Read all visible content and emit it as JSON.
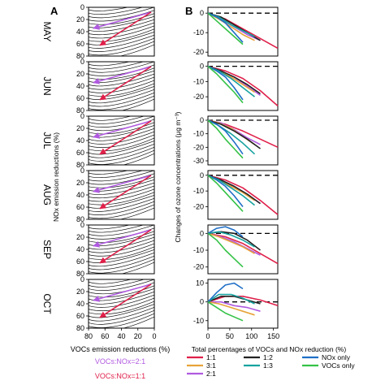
{
  "panel_a": {
    "letter": "A",
    "months": [
      "MAY",
      "JUN",
      "JUL",
      "AUG",
      "SEP",
      "OCT"
    ],
    "y_ticks": [
      0,
      20,
      40,
      60,
      80
    ],
    "x_ticks": [
      80,
      60,
      40,
      20,
      0
    ],
    "ylabel": "NOx emission reductions (%)",
    "xlabel": "VOCs emission reductions (%)",
    "legend": [
      {
        "label": "VOCs:NOx=2:1",
        "color": "#b05ae0"
      },
      {
        "label": "VOCs:NOx=1:1",
        "color": "#e0204a"
      }
    ]
  },
  "panel_b": {
    "letter": "B",
    "ylabel": "Changes of ozone concentrations (μg m⁻³)",
    "xlabel": "Total percentages of VOCs and NOx reduction (%)",
    "x_ticks": [
      0,
      50,
      100,
      150
    ],
    "legend": [
      {
        "label": "1:1",
        "color": "#e0204a"
      },
      {
        "label": "1:2",
        "color": "#222222"
      },
      {
        "label": "NOx only",
        "color": "#1f6fc6"
      },
      {
        "label": "3:1",
        "color": "#e7a33a"
      },
      {
        "label": "1:3",
        "color": "#17a3a0"
      },
      {
        "label": "VOCs only",
        "color": "#34c246"
      },
      {
        "label": "2:1",
        "color": "#b05ae0"
      }
    ]
  },
  "chart_data": [
    {
      "type": "line",
      "title": "",
      "xlabel": "Total percentages of VOCs and NOx reduction (%)",
      "ylabel": "Changes of ozone concentrations (μg m⁻³)",
      "xlim": [
        0,
        160
      ],
      "months": [
        {
          "month": "MAY",
          "y_ticks": [
            0,
            -10,
            -20
          ],
          "ylim": [
            -22,
            3
          ],
          "series": [
            {
              "name": "1:1",
              "color": "#e0204a",
              "x": [
                0,
                40,
                80,
                120,
                160
              ],
              "y": [
                0,
                -3,
                -8,
                -13,
                -18
              ]
            },
            {
              "name": "2:1",
              "color": "#b05ae0",
              "x": [
                0,
                30,
                60,
                90,
                120
              ],
              "y": [
                0,
                -3,
                -7,
                -11,
                -14
              ]
            },
            {
              "name": "3:1",
              "color": "#e7a33a",
              "x": [
                0,
                25,
                53,
                80,
                107
              ],
              "y": [
                0,
                -3,
                -7,
                -11,
                -14
              ]
            },
            {
              "name": "1:2",
              "color": "#222222",
              "x": [
                0,
                30,
                60,
                90,
                120
              ],
              "y": [
                0,
                -2,
                -6,
                -10,
                -14
              ]
            },
            {
              "name": "1:3",
              "color": "#17a3a0",
              "x": [
                0,
                25,
                53,
                80,
                107
              ],
              "y": [
                0,
                -2,
                -6,
                -9,
                -12
              ]
            },
            {
              "name": "NOx only",
              "color": "#1f6fc6",
              "x": [
                0,
                20,
                40,
                60,
                80
              ],
              "y": [
                0,
                -2,
                -5,
                -10,
                -15
              ]
            },
            {
              "name": "VOCs only",
              "color": "#34c246",
              "x": [
                0,
                20,
                40,
                60,
                80
              ],
              "y": [
                0,
                -4,
                -8,
                -12,
                -16
              ]
            }
          ]
        },
        {
          "month": "JUN",
          "y_ticks": [
            0,
            -10,
            -20
          ],
          "ylim": [
            -29,
            3
          ],
          "series": [
            {
              "name": "1:1",
              "color": "#e0204a",
              "x": [
                0,
                40,
                80,
                120,
                160
              ],
              "y": [
                0,
                -3,
                -8,
                -16,
                -26
              ]
            },
            {
              "name": "2:1",
              "color": "#b05ae0",
              "x": [
                0,
                30,
                60,
                90,
                120
              ],
              "y": [
                0,
                -3,
                -7,
                -13,
                -19
              ]
            },
            {
              "name": "3:1",
              "color": "#e7a33a",
              "x": [
                0,
                25,
                53,
                80,
                107
              ],
              "y": [
                0,
                -3,
                -7,
                -12,
                -17
              ]
            },
            {
              "name": "1:2",
              "color": "#222222",
              "x": [
                0,
                30,
                60,
                90,
                120
              ],
              "y": [
                0,
                -3,
                -7,
                -12,
                -18
              ]
            },
            {
              "name": "1:3",
              "color": "#17a3a0",
              "x": [
                0,
                25,
                53,
                80,
                107
              ],
              "y": [
                0,
                -3,
                -8,
                -14,
                -20
              ]
            },
            {
              "name": "NOx only",
              "color": "#1f6fc6",
              "x": [
                0,
                20,
                40,
                60,
                80
              ],
              "y": [
                0,
                -3,
                -7,
                -14,
                -22
              ]
            },
            {
              "name": "VOCs only",
              "color": "#34c246",
              "x": [
                0,
                20,
                40,
                60,
                80
              ],
              "y": [
                0,
                -5,
                -11,
                -17,
                -24
              ]
            }
          ]
        },
        {
          "month": "JUL",
          "y_ticks": [
            0,
            -10,
            -20,
            -30
          ],
          "ylim": [
            -33,
            3
          ],
          "series": [
            {
              "name": "1:1",
              "color": "#e0204a",
              "x": [
                0,
                40,
                80,
                120,
                160
              ],
              "y": [
                0,
                -3,
                -8,
                -14,
                -20
              ]
            },
            {
              "name": "2:1",
              "color": "#b05ae0",
              "x": [
                0,
                30,
                60,
                90,
                120
              ],
              "y": [
                0,
                -2,
                -7,
                -13,
                -18
              ]
            },
            {
              "name": "3:1",
              "color": "#e7a33a",
              "x": [
                0,
                25,
                53,
                80,
                107
              ],
              "y": [
                0,
                -2,
                -6,
                -12,
                -18
              ]
            },
            {
              "name": "1:2",
              "color": "#222222",
              "x": [
                0,
                30,
                60,
                90,
                120
              ],
              "y": [
                0,
                -3,
                -8,
                -14,
                -21
              ]
            },
            {
              "name": "1:3",
              "color": "#17a3a0",
              "x": [
                0,
                25,
                53,
                80,
                107
              ],
              "y": [
                0,
                -4,
                -10,
                -17,
                -25
              ]
            },
            {
              "name": "NOx only",
              "color": "#1f6fc6",
              "x": [
                0,
                20,
                40,
                60,
                80
              ],
              "y": [
                0,
                -3,
                -8,
                -16,
                -25
              ]
            },
            {
              "name": "VOCs only",
              "color": "#34c246",
              "x": [
                0,
                20,
                40,
                60,
                80
              ],
              "y": [
                0,
                -6,
                -14,
                -21,
                -28
              ]
            }
          ]
        },
        {
          "month": "AUG",
          "y_ticks": [
            0,
            -10,
            -20
          ],
          "ylim": [
            -28,
            3
          ],
          "series": [
            {
              "name": "1:1",
              "color": "#e0204a",
              "x": [
                0,
                40,
                80,
                120,
                160
              ],
              "y": [
                0,
                -3,
                -8,
                -16,
                -25
              ]
            },
            {
              "name": "2:1",
              "color": "#b05ae0",
              "x": [
                0,
                30,
                60,
                90,
                120
              ],
              "y": [
                0,
                -3,
                -7,
                -12,
                -18
              ]
            },
            {
              "name": "3:1",
              "color": "#e7a33a",
              "x": [
                0,
                25,
                53,
                80,
                107
              ],
              "y": [
                0,
                -3,
                -7,
                -11,
                -16
              ]
            },
            {
              "name": "1:2",
              "color": "#222222",
              "x": [
                0,
                30,
                60,
                90,
                120
              ],
              "y": [
                0,
                -3,
                -7,
                -12,
                -18
              ]
            },
            {
              "name": "1:3",
              "color": "#17a3a0",
              "x": [
                0,
                25,
                53,
                80,
                107
              ],
              "y": [
                0,
                -3,
                -8,
                -13,
                -19
              ]
            },
            {
              "name": "NOx only",
              "color": "#1f6fc6",
              "x": [
                0,
                20,
                40,
                60,
                80
              ],
              "y": [
                0,
                -3,
                -7,
                -13,
                -20
              ]
            },
            {
              "name": "VOCs only",
              "color": "#34c246",
              "x": [
                0,
                20,
                40,
                60,
                80
              ],
              "y": [
                0,
                -5,
                -11,
                -17,
                -23
              ]
            }
          ]
        },
        {
          "month": "SEP",
          "y_ticks": [
            0,
            -10,
            -20
          ],
          "ylim": [
            -24,
            5
          ],
          "series": [
            {
              "name": "1:1",
              "color": "#e0204a",
              "x": [
                0,
                40,
                80,
                120,
                160
              ],
              "y": [
                0,
                -2,
                -6,
                -12,
                -18
              ]
            },
            {
              "name": "2:1",
              "color": "#b05ae0",
              "x": [
                0,
                30,
                60,
                90,
                120
              ],
              "y": [
                0,
                -2,
                -5,
                -9,
                -13
              ]
            },
            {
              "name": "3:1",
              "color": "#e7a33a",
              "x": [
                0,
                25,
                53,
                80,
                107
              ],
              "y": [
                0,
                -2,
                -5,
                -8,
                -12
              ]
            },
            {
              "name": "1:2",
              "color": "#222222",
              "x": [
                0,
                30,
                60,
                90,
                120
              ],
              "y": [
                0,
                1,
                0,
                -4,
                -10
              ]
            },
            {
              "name": "1:3",
              "color": "#17a3a0",
              "x": [
                0,
                25,
                53,
                80,
                107
              ],
              "y": [
                0,
                1,
                -1,
                -4,
                -8
              ]
            },
            {
              "name": "NOx only",
              "color": "#1f6fc6",
              "x": [
                0,
                20,
                40,
                60,
                80
              ],
              "y": [
                0,
                3,
                4,
                2,
                -2
              ]
            },
            {
              "name": "VOCs only",
              "color": "#34c246",
              "x": [
                0,
                20,
                40,
                60,
                80
              ],
              "y": [
                0,
                -4,
                -10,
                -15,
                -20
              ]
            }
          ]
        },
        {
          "month": "OCT",
          "y_ticks": [
            10,
            0,
            -10
          ],
          "ylim": [
            -14,
            12
          ],
          "series": [
            {
              "name": "1:1",
              "color": "#e0204a",
              "x": [
                0,
                40,
                80,
                120,
                160
              ],
              "y": [
                0,
                3,
                3,
                1,
                -2
              ]
            },
            {
              "name": "2:1",
              "color": "#b05ae0",
              "x": [
                0,
                30,
                60,
                90,
                120
              ],
              "y": [
                0,
                0,
                -2,
                -3,
                -5
              ]
            },
            {
              "name": "3:1",
              "color": "#e7a33a",
              "x": [
                0,
                25,
                53,
                80,
                107
              ],
              "y": [
                0,
                -1,
                -3,
                -5,
                -7
              ]
            },
            {
              "name": "1:2",
              "color": "#222222",
              "x": [
                0,
                30,
                60,
                90,
                120
              ],
              "y": [
                0,
                3,
                3,
                1,
                -1
              ]
            },
            {
              "name": "1:3",
              "color": "#17a3a0",
              "x": [
                0,
                25,
                53,
                80,
                107
              ],
              "y": [
                0,
                4,
                4,
                2,
                -1
              ]
            },
            {
              "name": "NOx only",
              "color": "#1f6fc6",
              "x": [
                0,
                20,
                40,
                60,
                80
              ],
              "y": [
                0,
                5,
                9,
                10,
                7
              ]
            },
            {
              "name": "VOCs only",
              "color": "#34c246",
              "x": [
                0,
                20,
                40,
                60,
                80
              ],
              "y": [
                0,
                -3,
                -6,
                -8,
                -10
              ]
            }
          ]
        }
      ]
    }
  ]
}
